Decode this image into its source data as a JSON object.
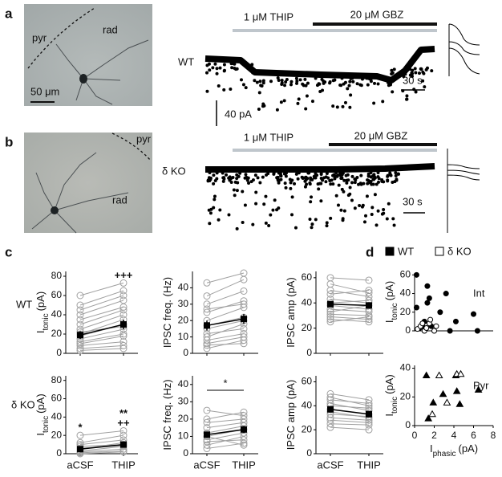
{
  "panel_labels": [
    "a",
    "b",
    "c",
    "d"
  ],
  "images": [
    {
      "labels": [
        "pyr",
        "rad"
      ],
      "scale": "50 μm"
    },
    {
      "labels": [
        "pyr",
        "rad"
      ]
    }
  ],
  "traces": [
    {
      "genotype": "WT",
      "drugs": [
        "1 μM THIP",
        "20 μM GBZ"
      ],
      "time_scale": "30 s"
    },
    {
      "genotype": "δ KO",
      "drugs": [
        "1 μM THIP",
        "20 μM GBZ"
      ],
      "time_scale": "30 s"
    }
  ],
  "amplitude_scale": "40 pA",
  "row_labels": [
    "WT",
    "δ KO"
  ],
  "chart_data": [
    {
      "type": "line",
      "ylabel": {
        "main": "I",
        "sub": "tonic",
        "unit": "(pA)"
      },
      "ylim": [
        0,
        85
      ],
      "yticks": [
        0,
        20,
        40,
        60,
        80
      ],
      "series_color": "#a0a0a0",
      "series": [
        {
          "values": [
            60,
            73
          ]
        },
        {
          "values": [
            50,
            65
          ]
        },
        {
          "values": [
            45,
            60
          ]
        },
        {
          "values": [
            40,
            55
          ]
        },
        {
          "values": [
            35,
            48
          ]
        },
        {
          "values": [
            30,
            45
          ]
        },
        {
          "values": [
            25,
            40
          ]
        },
        {
          "values": [
            20,
            35
          ]
        },
        {
          "values": [
            18,
            30
          ]
        },
        {
          "values": [
            15,
            25
          ]
        },
        {
          "values": [
            12,
            20
          ]
        },
        {
          "values": [
            10,
            18
          ]
        },
        {
          "values": [
            8,
            12
          ]
        },
        {
          "values": [
            5,
            8
          ]
        },
        {
          "values": [
            3,
            5
          ]
        },
        {
          "values": [
            22,
            28
          ]
        }
      ],
      "mean": {
        "values": [
          19,
          30
        ],
        "errors": [
          4,
          5
        ],
        "color": "#000000"
      },
      "annotations": [
        null,
        [
          "+++"
        ]
      ]
    },
    {
      "type": "line",
      "ylabel": {
        "main": "IPSC freq. (Hz)"
      },
      "ylim": [
        0,
        50
      ],
      "yticks": [
        0,
        10,
        20,
        30,
        40
      ],
      "series_color": "#a0a0a0",
      "series": [
        {
          "values": [
            43,
            49
          ]
        },
        {
          "values": [
            35,
            45
          ]
        },
        {
          "values": [
            30,
            38
          ]
        },
        {
          "values": [
            27,
            30
          ]
        },
        {
          "values": [
            25,
            32
          ]
        },
        {
          "values": [
            20,
            28
          ]
        },
        {
          "values": [
            17,
            22
          ]
        },
        {
          "values": [
            15,
            20
          ]
        },
        {
          "values": [
            12,
            15
          ]
        },
        {
          "values": [
            10,
            18
          ]
        },
        {
          "values": [
            8,
            12
          ]
        },
        {
          "values": [
            6,
            10
          ]
        },
        {
          "values": [
            5,
            6
          ]
        },
        {
          "values": [
            3,
            8
          ]
        }
      ],
      "mean": {
        "values": [
          17,
          21
        ],
        "errors": [
          3,
          3
        ],
        "color": "#000000"
      }
    },
    {
      "type": "line",
      "ylabel": {
        "main": "IPSC amp (pA)"
      },
      "ylim": [
        0,
        65
      ],
      "yticks": [
        0,
        20,
        40,
        60
      ],
      "series_color": "#a0a0a0",
      "series": [
        {
          "values": [
            60,
            58
          ]
        },
        {
          "values": [
            55,
            48
          ]
        },
        {
          "values": [
            50,
            45
          ]
        },
        {
          "values": [
            47,
            50
          ]
        },
        {
          "values": [
            43,
            40
          ]
        },
        {
          "values": [
            40,
            42
          ]
        },
        {
          "values": [
            38,
            35
          ]
        },
        {
          "values": [
            35,
            33
          ]
        },
        {
          "values": [
            33,
            38
          ]
        },
        {
          "values": [
            31,
            30
          ]
        },
        {
          "values": [
            29,
            27
          ]
        },
        {
          "values": [
            27,
            25
          ]
        },
        {
          "values": [
            25,
            29
          ]
        }
      ],
      "mean": {
        "values": [
          39,
          38
        ],
        "errors": [
          2,
          2
        ],
        "color": "#000000"
      }
    },
    {
      "type": "line",
      "ylabel": {
        "main": "I",
        "sub": "tonic",
        "unit": "(pA)"
      },
      "categories": [
        "aCSF",
        "THIP"
      ],
      "ylim": [
        0,
        85
      ],
      "yticks": [
        0,
        20,
        40,
        60,
        80
      ],
      "series_color": "#a0a0a0",
      "series": [
        {
          "values": [
            20,
            25
          ]
        },
        {
          "values": [
            12,
            20
          ]
        },
        {
          "values": [
            10,
            15
          ]
        },
        {
          "values": [
            8,
            10
          ]
        },
        {
          "values": [
            5,
            12
          ]
        },
        {
          "values": [
            3,
            8
          ]
        },
        {
          "values": [
            2,
            5
          ]
        },
        {
          "values": [
            1,
            3
          ]
        },
        {
          "values": [
            0,
            2
          ]
        },
        {
          "values": [
            6,
            9
          ]
        }
      ],
      "mean": {
        "values": [
          5,
          10
        ],
        "errors": [
          2,
          2
        ],
        "color": "#000000"
      },
      "annotations": [
        [
          "*"
        ],
        [
          "++",
          "**"
        ]
      ]
    },
    {
      "type": "line",
      "ylabel": {
        "main": "IPSC freq. (Hz)"
      },
      "categories": [
        "aCSF",
        "THIP"
      ],
      "ylim": [
        0,
        45
      ],
      "yticks": [
        0,
        10,
        20,
        30,
        40
      ],
      "series_color": "#a0a0a0",
      "series": [
        {
          "values": [
            25,
            22
          ]
        },
        {
          "values": [
            20,
            24
          ]
        },
        {
          "values": [
            18,
            20
          ]
        },
        {
          "values": [
            15,
            18
          ]
        },
        {
          "values": [
            12,
            16
          ]
        },
        {
          "values": [
            10,
            14
          ]
        },
        {
          "values": [
            8,
            12
          ]
        },
        {
          "values": [
            7,
            8
          ]
        },
        {
          "values": [
            5,
            10
          ]
        },
        {
          "values": [
            3,
            6
          ]
        },
        {
          "values": [
            10,
            5
          ]
        }
      ],
      "mean": {
        "values": [
          11,
          14
        ],
        "errors": [
          1,
          2
        ],
        "color": "#000000"
      },
      "comparison": "*"
    },
    {
      "type": "line",
      "ylabel": {
        "main": "IPSC amp (pA)"
      },
      "categories": [
        "aCSF",
        "THIP"
      ],
      "ylim": [
        0,
        65
      ],
      "yticks": [
        0,
        20,
        40,
        60
      ],
      "series_color": "#a0a0a0",
      "series": [
        {
          "values": [
            50,
            45
          ]
        },
        {
          "values": [
            47,
            40
          ]
        },
        {
          "values": [
            45,
            42
          ]
        },
        {
          "values": [
            42,
            36
          ]
        },
        {
          "values": [
            40,
            38
          ]
        },
        {
          "values": [
            37,
            33
          ]
        },
        {
          "values": [
            35,
            30
          ]
        },
        {
          "values": [
            33,
            31
          ]
        },
        {
          "values": [
            30,
            28
          ]
        },
        {
          "values": [
            28,
            26
          ]
        },
        {
          "values": [
            25,
            24
          ]
        },
        {
          "values": [
            22,
            20
          ]
        }
      ],
      "mean": {
        "values": [
          37,
          33
        ],
        "errors": [
          2,
          2
        ],
        "color": "#000000"
      }
    },
    {
      "type": "scatter",
      "title": "Int",
      "ylabel": {
        "main": "I",
        "sub": "tonic",
        "unit": "(pA)"
      },
      "xlim": [
        0,
        8
      ],
      "ylim": [
        0,
        62
      ],
      "yticks": [
        0,
        20,
        40,
        60
      ],
      "series": [
        {
          "name": "WT",
          "marker": "circle",
          "filled": true,
          "color": "#000000",
          "x": [
            0.2,
            1.3,
            0.2,
            1.5,
            1.3,
            2.6,
            3.2,
            3.6,
            4.2,
            6.0,
            6.4,
            1.0,
            0.8,
            0.5,
            1.7
          ],
          "values": [
            60,
            48,
            25,
            35,
            30,
            20,
            40,
            0,
            10,
            18,
            0,
            10,
            5,
            3,
            5
          ]
        },
        {
          "name": "δ KO",
          "marker": "circle",
          "filled": false,
          "color": "#000000",
          "x": [
            0.3,
            0.6,
            1.0,
            1.2,
            1.5,
            2.0,
            2.2,
            0.8,
            1.6
          ],
          "values": [
            2,
            5,
            0,
            3,
            8,
            0,
            5,
            8,
            12
          ]
        }
      ]
    },
    {
      "type": "scatter",
      "title": "Pyr",
      "ylabel": {
        "main": "I",
        "sub": "tonic",
        "unit": "(pA)"
      },
      "xlabel": {
        "main": "I",
        "sub": "phasic",
        "unit": "(pA)"
      },
      "xlim": [
        0,
        8
      ],
      "ylim": [
        0,
        42
      ],
      "xticks": [
        0,
        2,
        4,
        6,
        8
      ],
      "yticks": [
        0,
        20,
        40
      ],
      "series": [
        {
          "marker": "triangle",
          "filled": true,
          "color": "#000000",
          "x": [
            1.2,
            1.4,
            1.9,
            2.9,
            4.3,
            4.6,
            6.5,
            4.2
          ],
          "values": [
            35,
            5,
            16,
            22,
            24,
            15,
            25,
            35
          ]
        },
        {
          "marker": "triangle",
          "filled": false,
          "color": "#000000",
          "x": [
            2.5,
            1.8,
            3.3,
            4.3,
            4.7
          ],
          "values": [
            35,
            8,
            16,
            36,
            36
          ]
        }
      ]
    }
  ]
}
